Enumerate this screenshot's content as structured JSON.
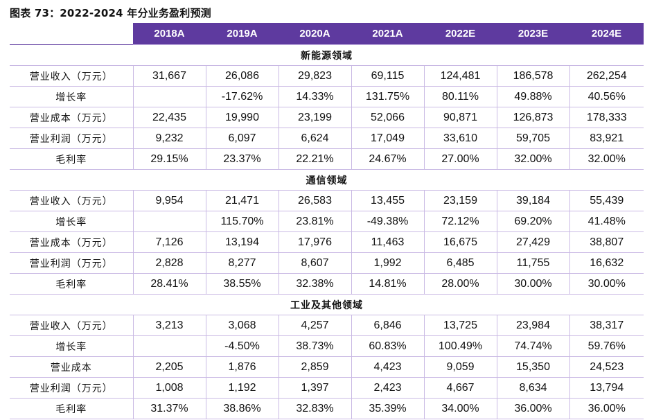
{
  "title": "图表 73：2022-2024 年分业务盈利预测",
  "header": {
    "corner": "",
    "years": [
      "2018A",
      "2019A",
      "2020A",
      "2021A",
      "2022E",
      "2023E",
      "2024E"
    ]
  },
  "sections": [
    {
      "name": "新能源领域",
      "rows": [
        {
          "label": "营业收入（万元）",
          "values": [
            "31,667",
            "26,086",
            "29,823",
            "69,115",
            "124,481",
            "186,578",
            "262,254"
          ]
        },
        {
          "label": "增长率",
          "values": [
            "",
            "-17.62%",
            "14.33%",
            "131.75%",
            "80.11%",
            "49.88%",
            "40.56%"
          ]
        },
        {
          "label": "营业成本（万元）",
          "values": [
            "22,435",
            "19,990",
            "23,199",
            "52,066",
            "90,871",
            "126,873",
            "178,333"
          ]
        },
        {
          "label": "营业利润（万元）",
          "values": [
            "9,232",
            "6,097",
            "6,624",
            "17,049",
            "33,610",
            "59,705",
            "83,921"
          ]
        },
        {
          "label": "毛利率",
          "values": [
            "29.15%",
            "23.37%",
            "22.21%",
            "24.67%",
            "27.00%",
            "32.00%",
            "32.00%"
          ]
        }
      ]
    },
    {
      "name": "通信领域",
      "rows": [
        {
          "label": "营业收入（万元）",
          "values": [
            "9,954",
            "21,471",
            "26,583",
            "13,455",
            "23,159",
            "39,184",
            "55,439"
          ]
        },
        {
          "label": "增长率",
          "values": [
            "",
            "115.70%",
            "23.81%",
            "-49.38%",
            "72.12%",
            "69.20%",
            "41.48%"
          ]
        },
        {
          "label": "营业成本（万元）",
          "values": [
            "7,126",
            "13,194",
            "17,976",
            "11,463",
            "16,675",
            "27,429",
            "38,807"
          ]
        },
        {
          "label": "营业利润（万元）",
          "values": [
            "2,828",
            "8,277",
            "8,607",
            "1,992",
            "6,485",
            "11,755",
            "16,632"
          ]
        },
        {
          "label": "毛利率",
          "values": [
            "28.41%",
            "38.55%",
            "32.38%",
            "14.81%",
            "28.00%",
            "30.00%",
            "30.00%"
          ]
        }
      ]
    },
    {
      "name": "工业及其他领域",
      "rows": [
        {
          "label": "营业收入（万元）",
          "values": [
            "3,213",
            "3,068",
            "4,257",
            "6,846",
            "13,725",
            "23,984",
            "38,317"
          ]
        },
        {
          "label": "增长率",
          "values": [
            "",
            "-4.50%",
            "38.73%",
            "60.83%",
            "100.49%",
            "74.74%",
            "59.76%"
          ]
        },
        {
          "label": "营业成本",
          "values": [
            "2,205",
            "1,876",
            "2,859",
            "4,423",
            "9,059",
            "15,350",
            "24,523"
          ]
        },
        {
          "label": "营业利润（万元）",
          "values": [
            "1,008",
            "1,192",
            "1,397",
            "2,423",
            "4,667",
            "8,634",
            "13,794"
          ]
        },
        {
          "label": "毛利率",
          "values": [
            "31.37%",
            "38.86%",
            "32.83%",
            "35.39%",
            "34.00%",
            "36.00%",
            "36.00%"
          ]
        }
      ]
    }
  ]
}
